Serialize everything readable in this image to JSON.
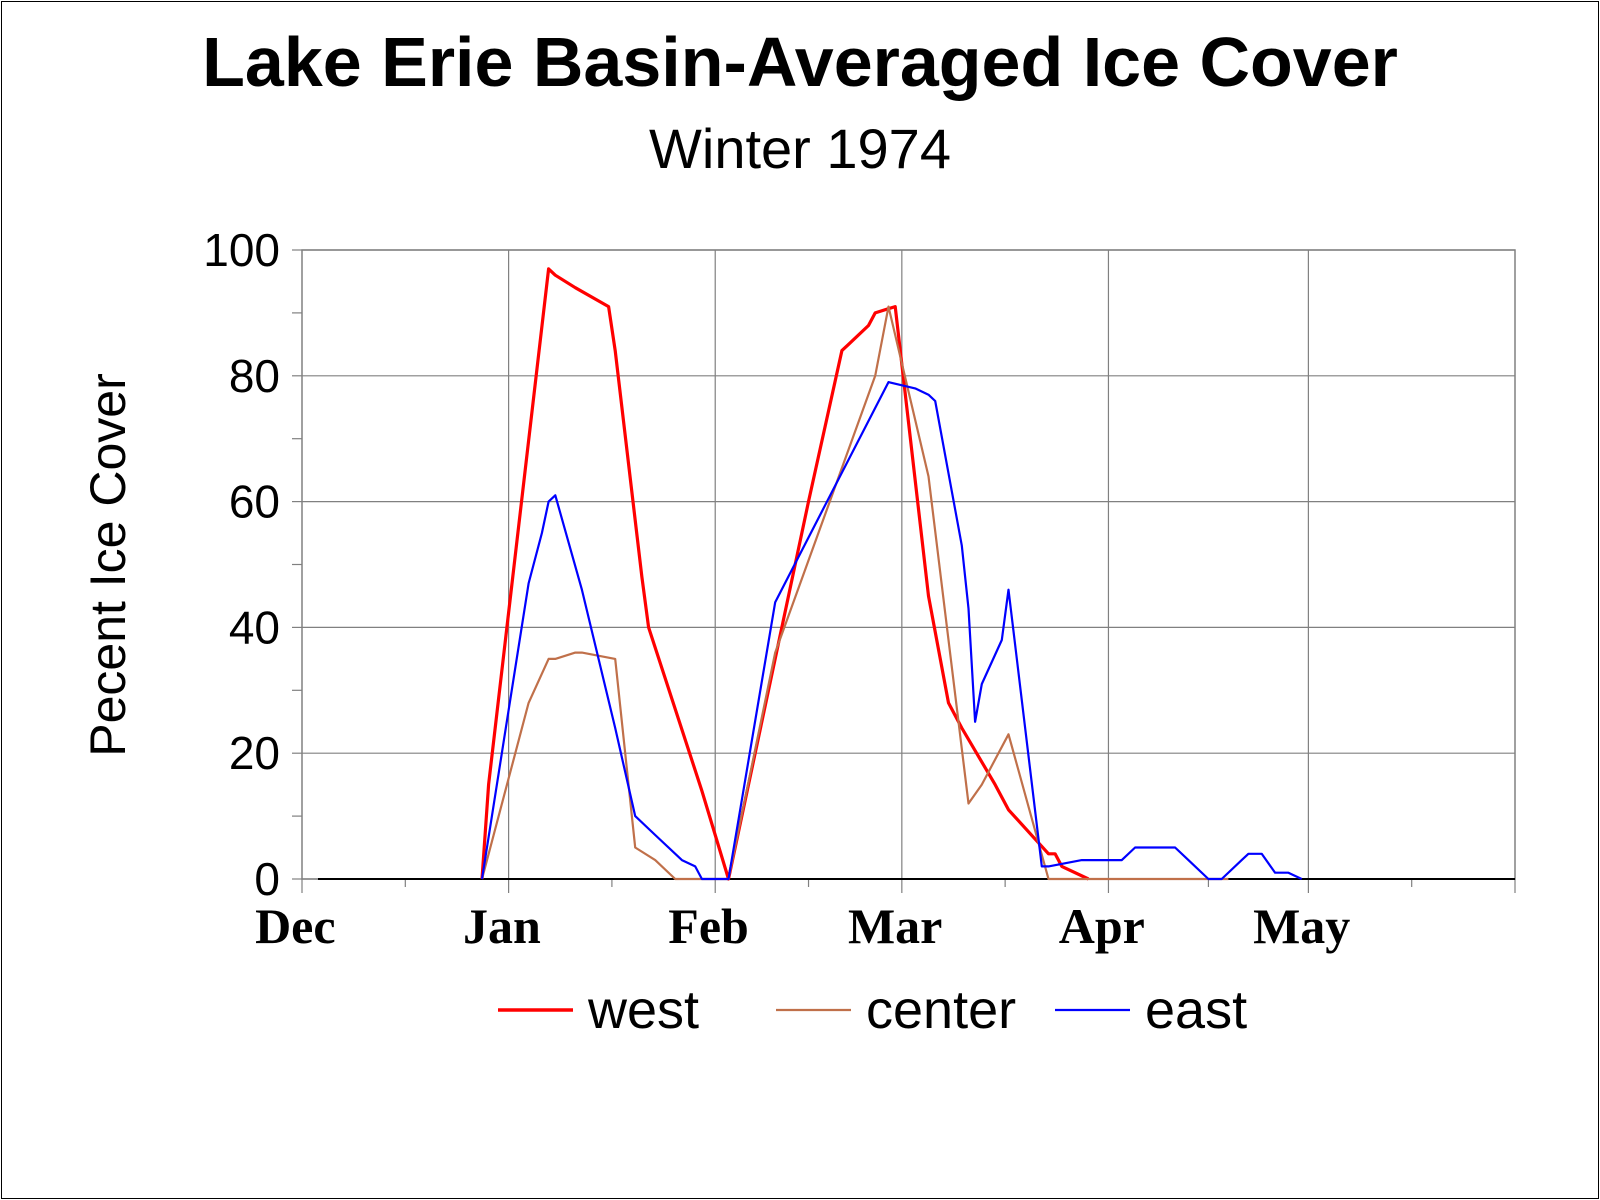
{
  "chart_data": {
    "type": "line",
    "title": "Lake Erie Basin-Averaged Ice Cover",
    "subtitle": "Winter 1974",
    "ylabel": "Pecent Ice Cover",
    "xlabel": "",
    "ylim": [
      0,
      100
    ],
    "yticks": [
      "0",
      "20",
      "40",
      "60",
      "80",
      "100"
    ],
    "month_labels": [
      "Dec",
      "Jan",
      "Feb",
      "Mar",
      "Apr",
      "May"
    ],
    "x_unit": "days since Dec 1",
    "grid": true,
    "legend_position": "bottom",
    "series": [
      {
        "name": "west",
        "color": "#ff0000",
        "x": [
          27,
          28,
          37,
          38,
          41,
          46,
          47,
          51,
          52,
          60,
          64,
          76,
          81,
          82,
          85,
          86,
          89,
          94,
          97,
          99,
          104,
          106,
          112,
          113,
          114,
          118
        ],
        "y": [
          0,
          15,
          97,
          96,
          94,
          91,
          84,
          48,
          40,
          14,
          0,
          60,
          84,
          85,
          88,
          90,
          91,
          45,
          28,
          24,
          15,
          11,
          4,
          4,
          2,
          0
        ]
      },
      {
        "name": "center",
        "color": "#c0704a",
        "x": [
          27,
          34,
          37,
          38,
          41,
          42,
          47,
          50,
          53,
          56,
          60,
          63,
          64,
          71,
          86,
          88,
          94,
          100,
          102,
          106,
          112,
          139
        ],
        "y": [
          0,
          28,
          35,
          35,
          36,
          36,
          35,
          5,
          3,
          0,
          0,
          0,
          0,
          36,
          80,
          91,
          64,
          12,
          15,
          23,
          0,
          0
        ]
      },
      {
        "name": "east",
        "color": "#0000ff",
        "x": [
          27,
          34,
          36,
          37,
          38,
          42,
          47,
          50,
          53,
          57,
          59,
          60,
          64,
          71,
          88,
          92,
          94,
          95,
          99,
          100,
          101,
          102,
          105,
          106,
          111,
          112,
          117,
          123,
          125,
          131,
          133,
          136,
          138,
          141,
          142,
          144,
          146,
          148,
          150
        ],
        "y": [
          0,
          47,
          55,
          60,
          61,
          46,
          24,
          10,
          7,
          3,
          2,
          0,
          0,
          44,
          79,
          78,
          77,
          76,
          53,
          43,
          25,
          31,
          38,
          46,
          2,
          2,
          3,
          3,
          5,
          5,
          3,
          0,
          0,
          3,
          4,
          4,
          1,
          1,
          0
        ]
      }
    ]
  }
}
